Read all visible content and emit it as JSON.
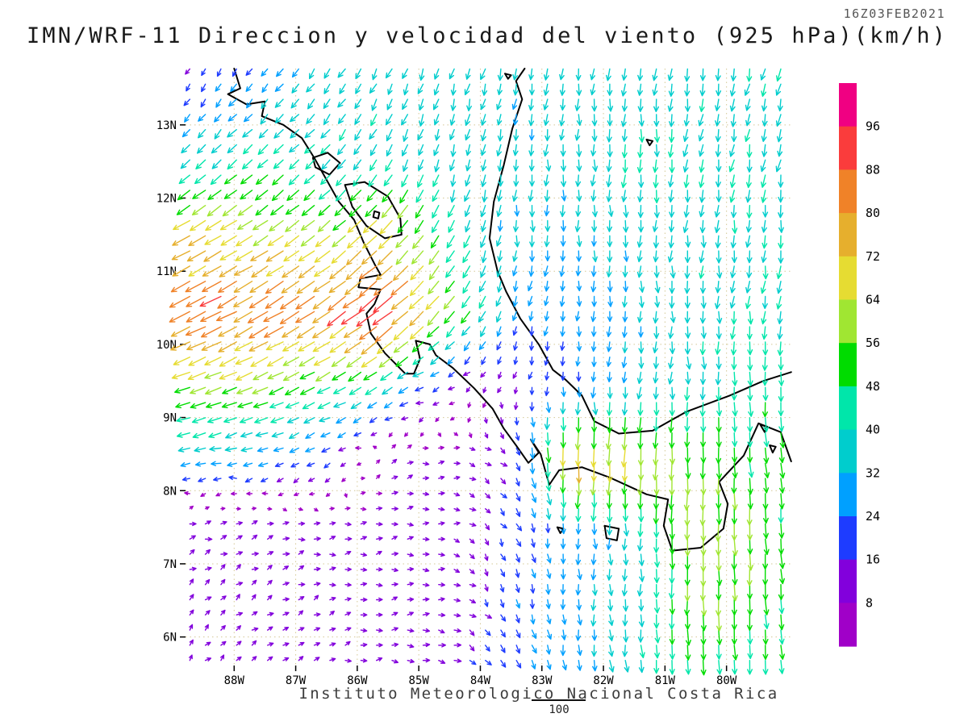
{
  "header": {
    "datetime": "16Z03FEB2021",
    "title": "IMN/WRF-11 Direccion y velocidad del viento (925 hPa)(km/h)"
  },
  "footer": {
    "caption": "Instituto Meteorologico Nacional Costa Rica",
    "vector_scale_label": "100"
  },
  "chart_data": {
    "type": "vector-field-map",
    "model": "IMN/WRF-11",
    "variable": "Direccion y velocidad del viento",
    "level": "925 hPa",
    "units": "km/h",
    "valid_time": "16Z03FEB2021",
    "map_extent": {
      "lon_min": -88.79,
      "lon_max": -78.96,
      "lat_min": 5.61,
      "lat_max": 13.77
    },
    "lon_ticks": [
      {
        "label": "88W",
        "value": -88
      },
      {
        "label": "87W",
        "value": -87
      },
      {
        "label": "86W",
        "value": -86
      },
      {
        "label": "85W",
        "value": -85
      },
      {
        "label": "84W",
        "value": -84
      },
      {
        "label": "83W",
        "value": -83
      },
      {
        "label": "82W",
        "value": -82
      },
      {
        "label": "81W",
        "value": -81
      },
      {
        "label": "80W",
        "value": -80
      }
    ],
    "lat_ticks": [
      {
        "label": "13N",
        "value": 13
      },
      {
        "label": "12N",
        "value": 12
      },
      {
        "label": "11N",
        "value": 11
      },
      {
        "label": "10N",
        "value": 10
      },
      {
        "label": "9N",
        "value": 9
      },
      {
        "label": "8N",
        "value": 8
      },
      {
        "label": "7N",
        "value": 7
      },
      {
        "label": "6N",
        "value": 6
      }
    ],
    "colorbar": {
      "levels": [
        8,
        16,
        24,
        32,
        40,
        48,
        56,
        64,
        72,
        80,
        88,
        96
      ],
      "colors": [
        "#A000C8",
        "#8200DC",
        "#1E3CFF",
        "#00A0FF",
        "#00CDCD",
        "#00E6AA",
        "#00DC00",
        "#A0E632",
        "#E6DC32",
        "#E6AF2D",
        "#F08228",
        "#FA3C3C",
        "#F00082"
      ]
    },
    "wind_grid": {
      "comment": "dir_deg_toward = compass direction arrows point toward (0=N,90=E); rows ordered south to north matching lats[]",
      "lats": [
        5.6,
        6.5,
        7.5,
        8.5,
        9.5,
        10.5,
        11.5,
        12.5,
        13.77
      ],
      "lons": [
        -88.8,
        -87.5,
        -86.5,
        -85.5,
        -84.5,
        -83.5,
        -82.5,
        -81.5,
        -80.5,
        -78.96
      ],
      "dir_deg_toward": [
        [
          45,
          55,
          70,
          85,
          95,
          145,
          175,
          175,
          178,
          174
        ],
        [
          48,
          55,
          70,
          85,
          95,
          160,
          178,
          176,
          180,
          174
        ],
        [
          70,
          80,
          85,
          78,
          90,
          150,
          180,
          180,
          180,
          176
        ],
        [
          258,
          255,
          250,
          60,
          90,
          140,
          182,
          184,
          180,
          172
        ],
        [
          250,
          247,
          242,
          235,
          260,
          185,
          178,
          185,
          180,
          178
        ],
        [
          243,
          241,
          237,
          232,
          218,
          200,
          185,
          180,
          180,
          188
        ],
        [
          240,
          237,
          232,
          225,
          210,
          185,
          178,
          180,
          185,
          185
        ],
        [
          225,
          228,
          222,
          210,
          195,
          185,
          180,
          182,
          188,
          192
        ],
        [
          205,
          215,
          215,
          205,
          195,
          195,
          185,
          185,
          190,
          195
        ]
      ],
      "speed_kmh": [
        [
          10,
          10,
          10,
          12,
          16,
          24,
          30,
          40,
          46,
          45
        ],
        [
          12,
          11,
          10,
          10,
          11,
          22,
          30,
          34,
          58,
          48
        ],
        [
          14,
          12,
          11,
          10,
          10,
          20,
          28,
          36,
          62,
          50
        ],
        [
          34,
          30,
          22,
          10,
          9,
          16,
          76,
          68,
          52,
          50
        ],
        [
          62,
          58,
          52,
          45,
          14,
          12,
          22,
          32,
          40,
          46
        ],
        [
          86,
          86,
          82,
          97,
          58,
          30,
          26,
          32,
          38,
          40
        ],
        [
          72,
          66,
          60,
          70,
          48,
          32,
          32,
          35,
          38,
          40
        ],
        [
          40,
          45,
          40,
          42,
          36,
          34,
          34,
          42,
          38,
          38
        ],
        [
          14,
          26,
          32,
          34,
          34,
          34,
          34,
          36,
          38,
          40
        ]
      ]
    },
    "coastlines": [
      [
        [
          -88.0,
          13.77
        ],
        [
          -87.9,
          13.5
        ],
        [
          -88.1,
          13.42
        ],
        [
          -87.8,
          13.28
        ],
        [
          -87.5,
          13.32
        ],
        [
          -87.55,
          13.12
        ],
        [
          -87.2,
          13.0
        ],
        [
          -86.9,
          12.82
        ],
        [
          -86.7,
          12.55
        ],
        [
          -86.5,
          12.25
        ],
        [
          -86.3,
          11.95
        ],
        [
          -86.05,
          11.7
        ],
        [
          -85.9,
          11.4
        ],
        [
          -85.72,
          11.1
        ],
        [
          -85.62,
          10.95
        ],
        [
          -85.95,
          10.9
        ],
        [
          -85.98,
          10.78
        ],
        [
          -85.62,
          10.75
        ],
        [
          -85.72,
          10.55
        ],
        [
          -85.85,
          10.42
        ],
        [
          -85.78,
          10.15
        ],
        [
          -85.55,
          9.88
        ],
        [
          -85.22,
          9.6
        ],
        [
          -85.08,
          9.6
        ],
        [
          -84.98,
          9.8
        ],
        [
          -85.05,
          10.05
        ],
        [
          -84.82,
          10.0
        ],
        [
          -84.72,
          9.85
        ],
        [
          -84.45,
          9.68
        ],
        [
          -84.1,
          9.4
        ],
        [
          -83.8,
          9.12
        ],
        [
          -83.62,
          8.85
        ],
        [
          -83.42,
          8.62
        ],
        [
          -83.22,
          8.38
        ],
        [
          -83.05,
          8.52
        ],
        [
          -83.18,
          8.7
        ],
        [
          -83.02,
          8.5
        ],
        [
          -82.88,
          8.08
        ],
        [
          -82.72,
          8.28
        ],
        [
          -82.35,
          8.32
        ],
        [
          -81.9,
          8.18
        ],
        [
          -81.3,
          7.95
        ],
        [
          -80.95,
          7.88
        ],
        [
          -81.02,
          7.52
        ],
        [
          -80.88,
          7.18
        ],
        [
          -80.42,
          7.22
        ],
        [
          -80.05,
          7.48
        ],
        [
          -79.98,
          7.82
        ],
        [
          -80.12,
          8.12
        ],
        [
          -79.72,
          8.48
        ],
        [
          -79.48,
          8.92
        ],
        [
          -79.12,
          8.8
        ],
        [
          -78.95,
          8.4
        ]
      ],
      [
        [
          -78.95,
          9.62
        ],
        [
          -79.4,
          9.5
        ],
        [
          -79.95,
          9.3
        ],
        [
          -80.65,
          9.08
        ],
        [
          -81.2,
          8.82
        ],
        [
          -81.75,
          8.78
        ],
        [
          -82.15,
          8.95
        ],
        [
          -82.35,
          9.3
        ],
        [
          -82.62,
          9.52
        ],
        [
          -82.82,
          9.65
        ],
        [
          -83.05,
          10.0
        ],
        [
          -83.35,
          10.35
        ],
        [
          -83.58,
          10.72
        ],
        [
          -83.72,
          11.0
        ],
        [
          -83.85,
          11.45
        ],
        [
          -83.78,
          11.95
        ],
        [
          -83.62,
          12.45
        ],
        [
          -83.48,
          12.95
        ],
        [
          -83.32,
          13.35
        ],
        [
          -83.42,
          13.6
        ],
        [
          -83.28,
          13.77
        ]
      ],
      [
        [
          -86.72,
          12.55
        ],
        [
          -86.48,
          12.62
        ],
        [
          -86.28,
          12.48
        ],
        [
          -86.45,
          12.32
        ],
        [
          -86.68,
          12.42
        ],
        [
          -86.72,
          12.55
        ]
      ],
      [
        [
          -86.2,
          12.18
        ],
        [
          -85.88,
          12.22
        ],
        [
          -85.5,
          12.02
        ],
        [
          -85.3,
          11.72
        ],
        [
          -85.28,
          11.5
        ],
        [
          -85.55,
          11.45
        ],
        [
          -85.85,
          11.62
        ],
        [
          -86.08,
          11.88
        ],
        [
          -86.2,
          12.18
        ]
      ],
      [
        [
          -85.72,
          11.82
        ],
        [
          -85.64,
          11.8
        ],
        [
          -85.66,
          11.72
        ],
        [
          -85.74,
          11.74
        ],
        [
          -85.72,
          11.82
        ]
      ],
      [
        [
          -81.98,
          7.52
        ],
        [
          -81.75,
          7.48
        ],
        [
          -81.78,
          7.32
        ],
        [
          -81.95,
          7.35
        ],
        [
          -81.98,
          7.52
        ]
      ],
      [
        [
          -83.6,
          13.7
        ],
        [
          -83.5,
          13.68
        ],
        [
          -83.55,
          13.63
        ],
        [
          -83.6,
          13.7
        ]
      ],
      [
        [
          -81.3,
          12.8
        ],
        [
          -81.2,
          12.78
        ],
        [
          -81.25,
          12.72
        ],
        [
          -81.3,
          12.8
        ]
      ],
      [
        [
          -79.45,
          8.9
        ],
        [
          -79.35,
          8.88
        ],
        [
          -79.38,
          8.8
        ],
        [
          -79.45,
          8.9
        ]
      ],
      [
        [
          -79.3,
          8.62
        ],
        [
          -79.2,
          8.6
        ],
        [
          -79.25,
          8.52
        ],
        [
          -79.3,
          8.62
        ]
      ],
      [
        [
          -82.75,
          7.5
        ],
        [
          -82.65,
          7.48
        ],
        [
          -82.7,
          7.42
        ],
        [
          -82.75,
          7.5
        ]
      ]
    ],
    "grid_lines": {
      "style": "dotted",
      "color": "#D4C896"
    }
  }
}
